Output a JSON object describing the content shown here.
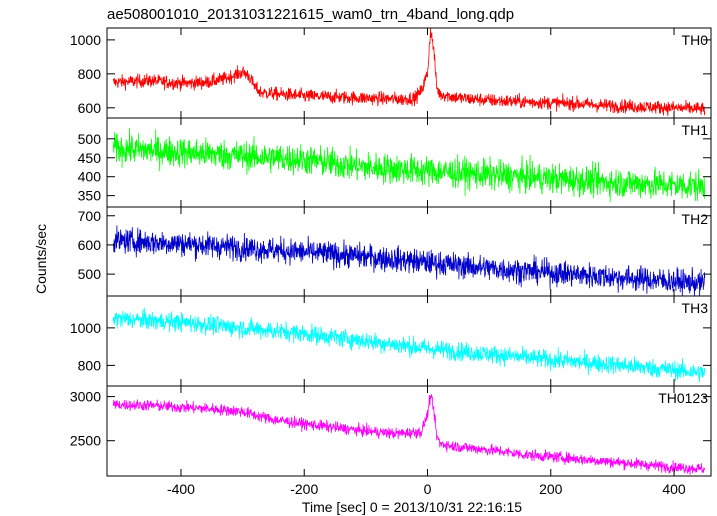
{
  "chart_data": {
    "type": "line",
    "title": "ae508001010_20131031221615_wam0_trn_4band_long.qdp",
    "xlabel": "Time [sec] 0 = 2013/10/31 22:16:15",
    "ylabel": "Counts/sec",
    "xlim": [
      -520,
      460
    ],
    "x_ticks": [
      -400,
      -200,
      0,
      200,
      400
    ],
    "panels": [
      {
        "name": "TH0",
        "color": "#ff0000",
        "ylim": [
          540,
          1070
        ],
        "y_ticks": [
          600,
          800,
          1000
        ],
        "x": [
          -510,
          -480,
          -450,
          -420,
          -390,
          -360,
          -330,
          -300,
          -290,
          -280,
          -270,
          -240,
          -200,
          -160,
          -120,
          -80,
          -40,
          -20,
          -10,
          0,
          5,
          10,
          15,
          20,
          30,
          40,
          60,
          80,
          120,
          160,
          200,
          240,
          280,
          320,
          360,
          400,
          440,
          450
        ],
        "values": [
          750,
          755,
          760,
          750,
          745,
          750,
          770,
          810,
          790,
          720,
          690,
          680,
          670,
          665,
          660,
          655,
          650,
          660,
          700,
          800,
          1060,
          950,
          720,
          680,
          675,
          665,
          655,
          650,
          640,
          635,
          630,
          625,
          615,
          610,
          605,
          600,
          595,
          590
        ],
        "noise": 28
      },
      {
        "name": "TH1",
        "color": "#00ff00",
        "ylim": [
          320,
          555
        ],
        "y_ticks": [
          350,
          400,
          450,
          500
        ],
        "x": [
          -510,
          -400,
          -300,
          -200,
          -100,
          0,
          100,
          200,
          300,
          400,
          450
        ],
        "values": [
          475,
          465,
          455,
          445,
          425,
          415,
          405,
          395,
          385,
          378,
          375
        ],
        "noise": 28
      },
      {
        "name": "TH2",
        "color": "#0000cc",
        "ylim": [
          425,
          730
        ],
        "y_ticks": [
          500,
          600,
          700
        ],
        "x": [
          -510,
          -400,
          -300,
          -200,
          -100,
          0,
          100,
          200,
          300,
          400,
          450
        ],
        "values": [
          615,
          605,
          590,
          575,
          560,
          540,
          520,
          505,
          490,
          475,
          468
        ],
        "noise": 30
      },
      {
        "name": "TH3",
        "color": "#00ffff",
        "ylim": [
          690,
          1170
        ],
        "y_ticks": [
          800,
          1000
        ],
        "x": [
          -510,
          -400,
          -300,
          -200,
          -100,
          0,
          100,
          200,
          300,
          400,
          450
        ],
        "values": [
          1050,
          1030,
          1000,
          970,
          930,
          890,
          860,
          830,
          805,
          775,
          760
        ],
        "noise": 35
      },
      {
        "name": "TH0123",
        "color": "#ff00ff",
        "ylim": [
          2100,
          3120
        ],
        "y_ticks": [
          2500,
          3000
        ],
        "x": [
          -510,
          -450,
          -400,
          -350,
          -300,
          -280,
          -250,
          -200,
          -150,
          -100,
          -50,
          -10,
          0,
          5,
          10,
          15,
          20,
          40,
          80,
          120,
          160,
          200,
          250,
          300,
          350,
          400,
          450
        ],
        "values": [
          2910,
          2900,
          2880,
          2860,
          2830,
          2790,
          2740,
          2690,
          2650,
          2610,
          2580,
          2600,
          2800,
          3020,
          2850,
          2560,
          2470,
          2440,
          2410,
          2380,
          2340,
          2320,
          2290,
          2260,
          2230,
          2200,
          2180
        ],
        "noise": 45
      }
    ]
  }
}
